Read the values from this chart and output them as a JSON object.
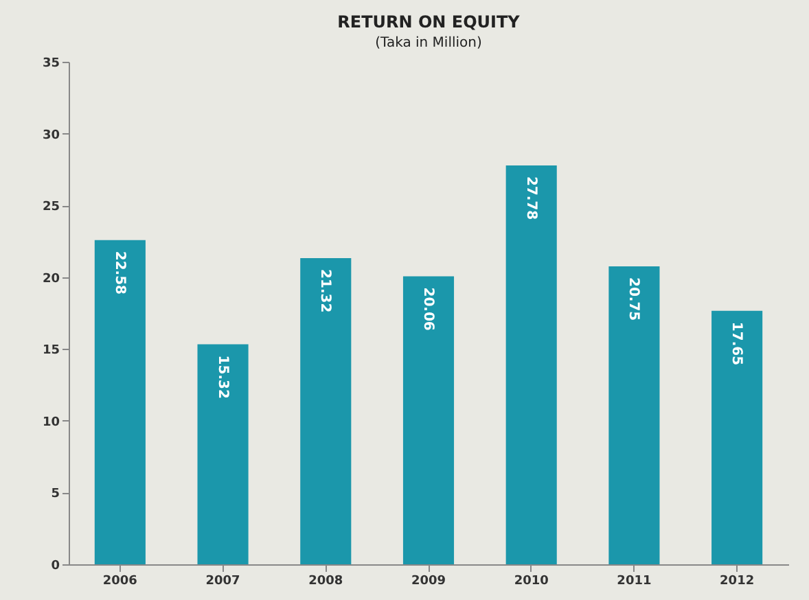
{
  "chart_data": {
    "type": "bar",
    "title": "RETURN ON EQUITY",
    "subtitle": "(Taka in Million)",
    "categories": [
      "2006",
      "2007",
      "2008",
      "2009",
      "2010",
      "2011",
      "2012"
    ],
    "values": [
      22.58,
      15.32,
      21.32,
      20.06,
      27.78,
      20.75,
      17.65
    ],
    "color": "#1b97ab",
    "ylim": [
      0,
      35
    ],
    "yticks": [
      0,
      5,
      10,
      15,
      20,
      25,
      30,
      35
    ],
    "grid": false,
    "data_labels": true
  }
}
